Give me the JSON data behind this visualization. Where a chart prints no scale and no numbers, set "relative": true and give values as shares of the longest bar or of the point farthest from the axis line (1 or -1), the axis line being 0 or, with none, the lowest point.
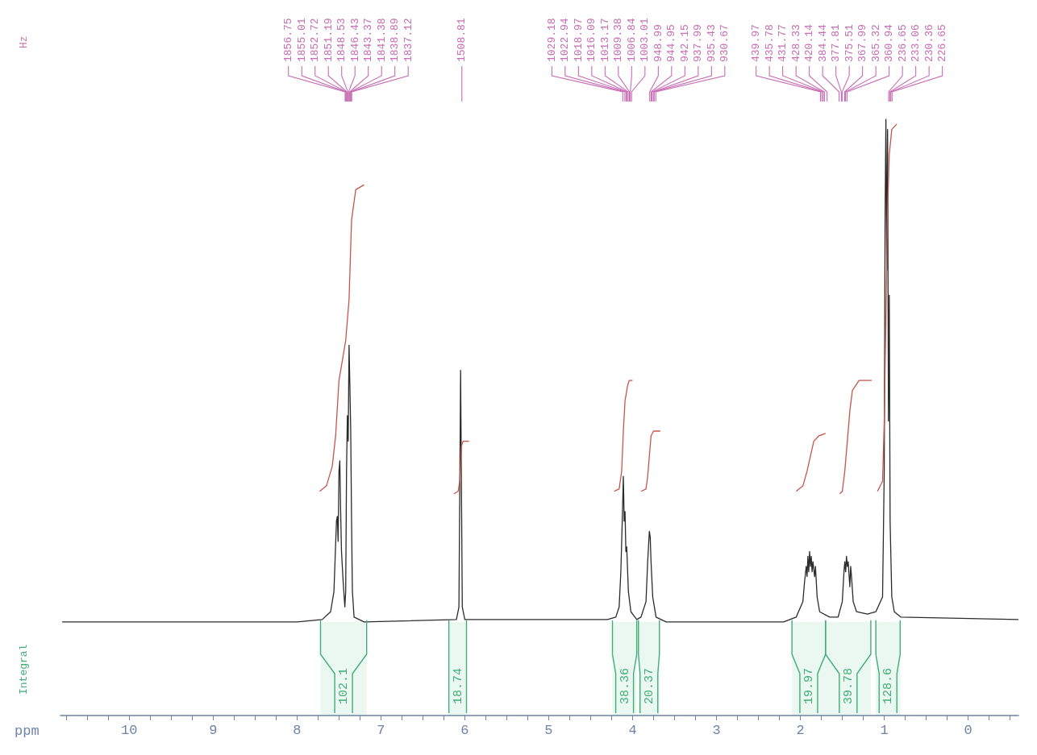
{
  "chart_data": {
    "type": "line",
    "relative": true,
    "xlabel": "ppm",
    "marker": "none",
    "xlim": [
      10.82,
      -0.6
    ],
    "xticks": [
      {
        "value": 10.75,
        "label": null
      },
      {
        "value": 10.5,
        "label": null
      },
      {
        "value": 10.25,
        "label": null
      },
      10,
      {
        "value": 9.75,
        "label": null
      },
      {
        "value": 9.5,
        "label": null
      },
      {
        "value": 9.25,
        "label": null
      },
      9,
      {
        "value": 8.75,
        "label": null
      },
      {
        "value": 8.5,
        "label": null
      },
      {
        "value": 8.25,
        "label": null
      },
      8,
      {
        "value": 7.75,
        "label": null
      },
      {
        "value": 7.5,
        "label": null
      },
      {
        "value": 7.25,
        "label": null
      },
      7,
      {
        "value": 6.75,
        "label": null
      },
      {
        "value": 6.5,
        "label": null
      },
      {
        "value": 6.25,
        "label": null
      },
      6,
      {
        "value": 5.75,
        "label": null
      },
      {
        "value": 5.5,
        "label": null
      },
      {
        "value": 5.25,
        "label": null
      },
      5,
      {
        "value": 4.75,
        "label": null
      },
      {
        "value": 4.5,
        "label": null
      },
      {
        "value": 4.25,
        "label": null
      },
      4,
      {
        "value": 3.75,
        "label": null
      },
      {
        "value": 3.5,
        "label": null
      },
      {
        "value": 3.25,
        "label": null
      },
      3,
      {
        "value": 2.75,
        "label": null
      },
      {
        "value": 2.5,
        "label": null
      },
      {
        "value": 2.25,
        "label": null
      },
      2,
      {
        "value": 1.75,
        "label": null
      },
      {
        "value": 1.5,
        "label": null
      },
      {
        "value": 1.25,
        "label": null
      },
      1,
      {
        "value": 0.75,
        "label": null
      },
      {
        "value": 0.5,
        "label": null
      },
      {
        "value": 0.25,
        "label": null
      },
      0,
      {
        "value": -0.25,
        "label": null
      },
      {
        "value": -0.5,
        "label": null
      }
    ],
    "series": [
      {
        "color": "#2b2b2b",
        "x": [
          10.8,
          8.0,
          7.7,
          7.6,
          7.56,
          7.53,
          7.52,
          7.51,
          7.5,
          7.49,
          7.48,
          7.47,
          7.45,
          7.43,
          7.42,
          7.41,
          7.4,
          7.39,
          7.38,
          7.37,
          7.36,
          7.35,
          7.34,
          7.32,
          7.2,
          6.1,
          6.07,
          6.05,
          6.03,
          6.0,
          4.3,
          4.2,
          4.16,
          4.14,
          4.12,
          4.11,
          4.1,
          4.09,
          4.08,
          4.07,
          4.05,
          4.02,
          3.95,
          3.9,
          3.84,
          3.82,
          3.8,
          3.79,
          3.78,
          3.76,
          3.72,
          3.6,
          2.2,
          2.05,
          1.97,
          1.95,
          1.93,
          1.92,
          1.91,
          1.9,
          1.89,
          1.88,
          1.87,
          1.86,
          1.85,
          1.83,
          1.82,
          1.8,
          1.77,
          1.65,
          1.55,
          1.5,
          1.48,
          1.47,
          1.46,
          1.45,
          1.44,
          1.43,
          1.41,
          1.4,
          1.39,
          1.37,
          1.33,
          1.2,
          1.1,
          1.02,
          1.0,
          0.99,
          0.98,
          0.97,
          0.96,
          0.95,
          0.94,
          0.93,
          0.91,
          0.88,
          0.8,
          -0.6
        ],
        "values": [
          0.157,
          0.157,
          0.161,
          0.174,
          0.208,
          0.326,
          0.334,
          0.292,
          0.41,
          0.427,
          0.342,
          0.275,
          0.224,
          0.182,
          0.208,
          0.41,
          0.503,
          0.46,
          0.621,
          0.553,
          0.477,
          0.326,
          0.208,
          0.165,
          0.157,
          0.161,
          0.182,
          0.579,
          0.182,
          0.161,
          0.161,
          0.165,
          0.182,
          0.241,
          0.342,
          0.401,
          0.326,
          0.342,
          0.275,
          0.283,
          0.208,
          0.174,
          0.161,
          0.165,
          0.191,
          0.258,
          0.309,
          0.3,
          0.258,
          0.199,
          0.165,
          0.157,
          0.157,
          0.165,
          0.191,
          0.224,
          0.25,
          0.233,
          0.267,
          0.241,
          0.275,
          0.25,
          0.267,
          0.241,
          0.258,
          0.233,
          0.25,
          0.199,
          0.174,
          0.165,
          0.165,
          0.191,
          0.241,
          0.258,
          0.241,
          0.267,
          0.25,
          0.258,
          0.216,
          0.25,
          0.233,
          0.191,
          0.174,
          0.17,
          0.174,
          0.199,
          0.41,
          0.831,
          1.0,
          0.747,
          0.983,
          0.494,
          0.705,
          0.326,
          0.199,
          0.174,
          0.165,
          0.161
        ]
      },
      {
        "color": "#c8554a",
        "x": [
          7.73,
          7.65,
          7.58,
          7.54,
          7.5,
          7.46,
          7.42,
          7.38,
          7.35,
          7.3,
          7.2
        ],
        "values": [
          0.376,
          0.385,
          0.418,
          0.469,
          0.562,
          0.595,
          0.629,
          0.697,
          0.831,
          0.882,
          0.89
        ]
      },
      {
        "color": "#c8554a",
        "x": [
          6.13,
          6.08,
          6.06,
          6.05,
          6.04,
          6.02,
          5.95
        ],
        "values": [
          0.372,
          0.376,
          0.393,
          0.418,
          0.452,
          0.46,
          0.46
        ]
      },
      {
        "color": "#c8554a",
        "x": [
          4.22,
          4.16,
          4.13,
          4.11,
          4.09,
          4.06,
          4.04,
          4.0
        ],
        "values": [
          0.376,
          0.38,
          0.41,
          0.477,
          0.528,
          0.553,
          0.562,
          0.562
        ]
      },
      {
        "color": "#c8554a",
        "x": [
          3.9,
          3.84,
          3.82,
          3.8,
          3.78,
          3.75,
          3.67
        ],
        "values": [
          0.376,
          0.38,
          0.401,
          0.435,
          0.469,
          0.477,
          0.477
        ]
      },
      {
        "color": "#c8554a",
        "x": [
          2.05,
          1.97,
          1.92,
          1.88,
          1.84,
          1.78,
          1.7
        ],
        "values": [
          0.376,
          0.385,
          0.41,
          0.435,
          0.46,
          0.469,
          0.473
        ]
      },
      {
        "color": "#c8554a",
        "x": [
          1.53,
          1.5,
          1.47,
          1.44,
          1.41,
          1.38,
          1.3,
          1.15
        ],
        "values": [
          0.372,
          0.376,
          0.41,
          0.46,
          0.511,
          0.545,
          0.562,
          0.562
        ]
      },
      {
        "color": "#c8554a",
        "x": [
          1.08,
          1.02,
          1.0,
          0.98,
          0.96,
          0.94,
          0.91,
          0.85
        ],
        "values": [
          0.376,
          0.393,
          0.494,
          0.663,
          0.848,
          0.941,
          0.983,
          0.992
        ]
      }
    ],
    "bands": [
      {
        "axis": "x",
        "from": 7.72,
        "to": 7.17,
        "label": "102.1",
        "color": "#3fae78"
      },
      {
        "axis": "x",
        "from": 6.19,
        "to": 5.98,
        "label": "18.74",
        "color": "#3fae78"
      },
      {
        "axis": "x",
        "from": 4.24,
        "to": 3.95,
        "label": "38.36",
        "color": "#3fae78"
      },
      {
        "axis": "x",
        "from": 3.93,
        "to": 3.68,
        "label": "20.37",
        "color": "#3fae78"
      },
      {
        "axis": "x",
        "from": 2.1,
        "to": 1.7,
        "label": "19.97",
        "color": "#3fae78"
      },
      {
        "axis": "x",
        "from": 1.7,
        "to": 1.16,
        "label": "39.78",
        "color": "#3fae78"
      },
      {
        "axis": "x",
        "from": 1.1,
        "to": 0.81,
        "label": "128.6",
        "color": "#3fae78"
      }
    ],
    "annotations": [
      "Hz",
      "Integral",
      {
        "text": "1856.75",
        "x": 7.427
      },
      {
        "text": "1855.01",
        "x": 7.42
      },
      {
        "text": "1852.72",
        "x": 7.411
      },
      {
        "text": "1851.19",
        "x": 7.405
      },
      {
        "text": "1848.53",
        "x": 7.394
      },
      {
        "text": "1846.43",
        "x": 7.386
      },
      {
        "text": "1843.37",
        "x": 7.373
      },
      {
        "text": "1841.38",
        "x": 7.366
      },
      {
        "text": "1838.89",
        "x": 7.356
      },
      {
        "text": "1837.12",
        "x": 7.348
      },
      {
        "text": "1508.81",
        "x": 6.035
      },
      {
        "text": "1029.18",
        "x": 4.117
      },
      {
        "text": "1022.94",
        "x": 4.092
      },
      {
        "text": "1018.97",
        "x": 4.076
      },
      {
        "text": "1016.09",
        "x": 4.064
      },
      {
        "text": "1013.17",
        "x": 4.053
      },
      {
        "text": "1009.38",
        "x": 4.038
      },
      {
        "text": "1006.84",
        "x": 4.027
      },
      {
        "text": "1003.01",
        "x": 4.012
      },
      {
        "text": "948.99",
        "x": 3.796
      },
      {
        "text": "944.95",
        "x": 3.78
      },
      {
        "text": "942.15",
        "x": 3.769
      },
      {
        "text": "937.99",
        "x": 3.752
      },
      {
        "text": "935.43",
        "x": 3.742
      },
      {
        "text": "930.67",
        "x": 3.723
      },
      {
        "text": "439.97",
        "x": 1.76
      },
      {
        "text": "435.78",
        "x": 1.743
      },
      {
        "text": "431.77",
        "x": 1.727
      },
      {
        "text": "428.33",
        "x": 1.713
      },
      {
        "text": "420.14",
        "x": 1.681
      },
      {
        "text": "384.44",
        "x": 1.538
      },
      {
        "text": "377.81",
        "x": 1.511
      },
      {
        "text": "375.51",
        "x": 1.502
      },
      {
        "text": "367.99",
        "x": 1.472
      },
      {
        "text": "365.32",
        "x": 1.461
      },
      {
        "text": "360.94",
        "x": 1.444
      },
      {
        "text": "236.65",
        "x": 0.947
      },
      {
        "text": "233.06",
        "x": 0.932
      },
      {
        "text": "230.36",
        "x": 0.921
      },
      {
        "text": "226.65",
        "x": 0.907
      }
    ]
  }
}
